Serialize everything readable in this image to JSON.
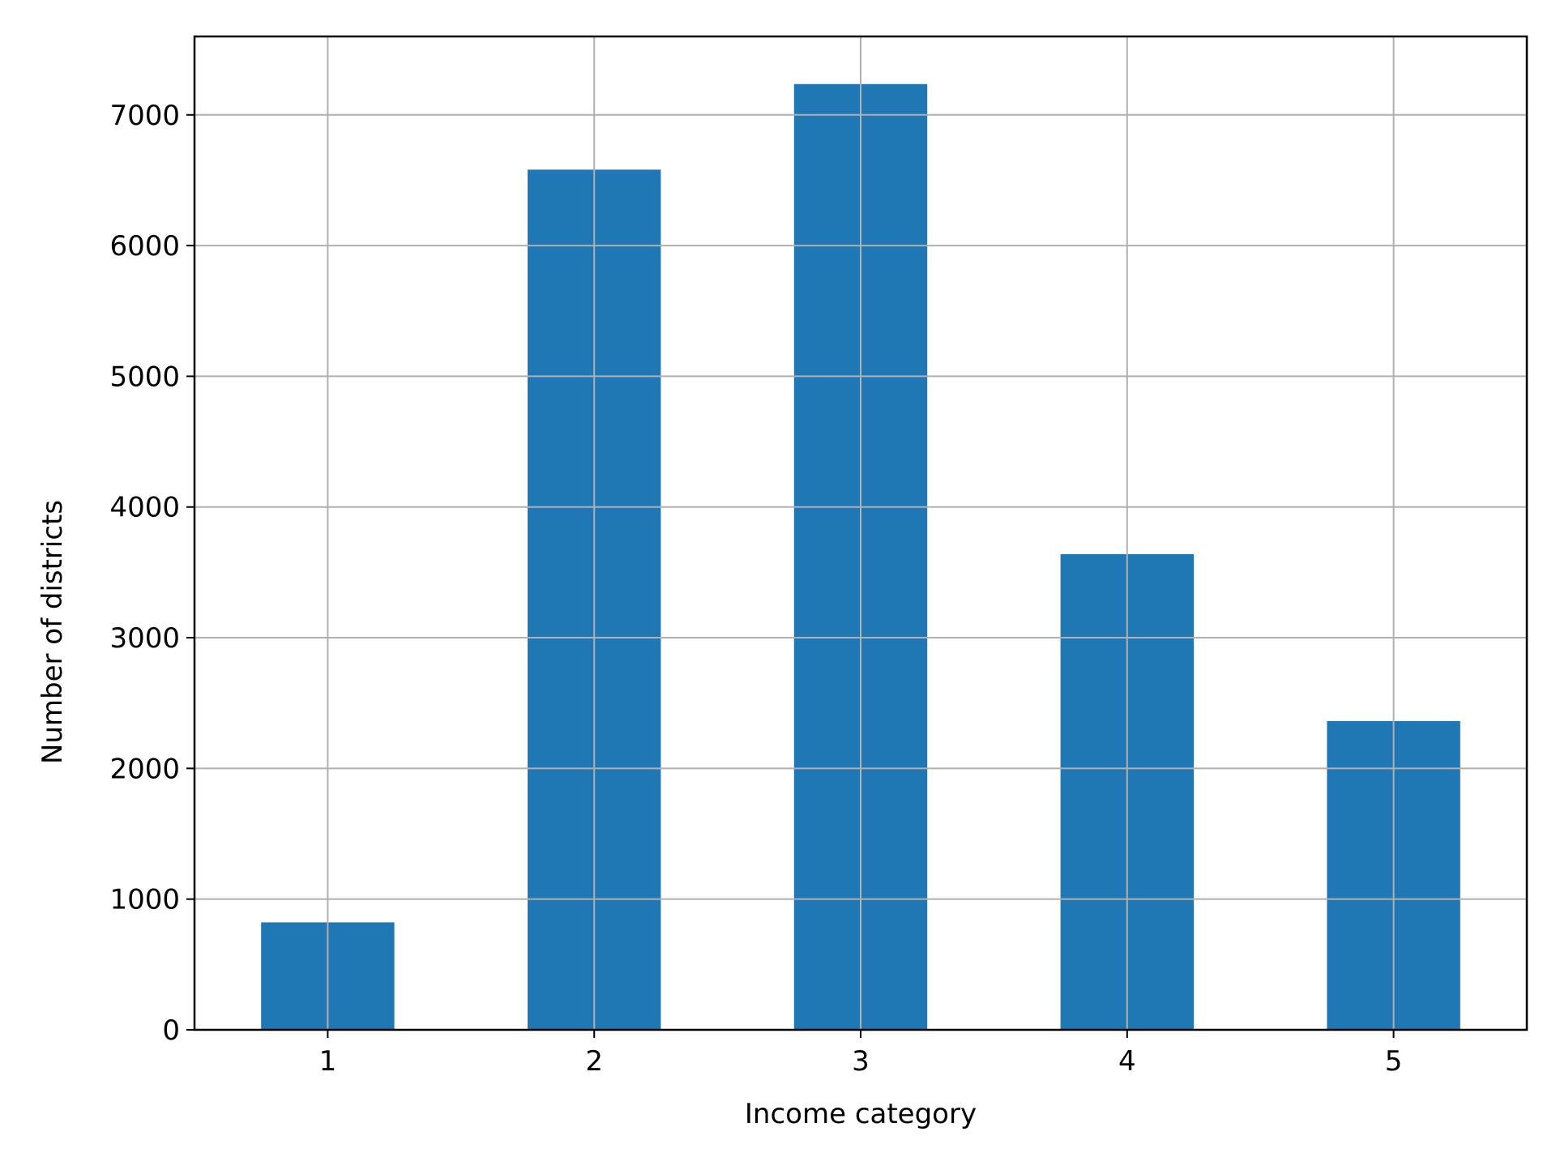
{
  "chart_data": {
    "type": "bar",
    "title": "",
    "xlabel": "Income category",
    "ylabel": "Number of districts",
    "categories": [
      "1",
      "2",
      "3",
      "4",
      "5"
    ],
    "values": [
      822,
      6581,
      7236,
      3639,
      2362
    ],
    "ylim": [
      0,
      7600
    ],
    "yticks": [
      0,
      1000,
      2000,
      3000,
      4000,
      5000,
      6000,
      7000
    ],
    "grid": true,
    "legend": "none",
    "bar_color": "#1f77b4",
    "grid_color": "#b0b0b0"
  }
}
